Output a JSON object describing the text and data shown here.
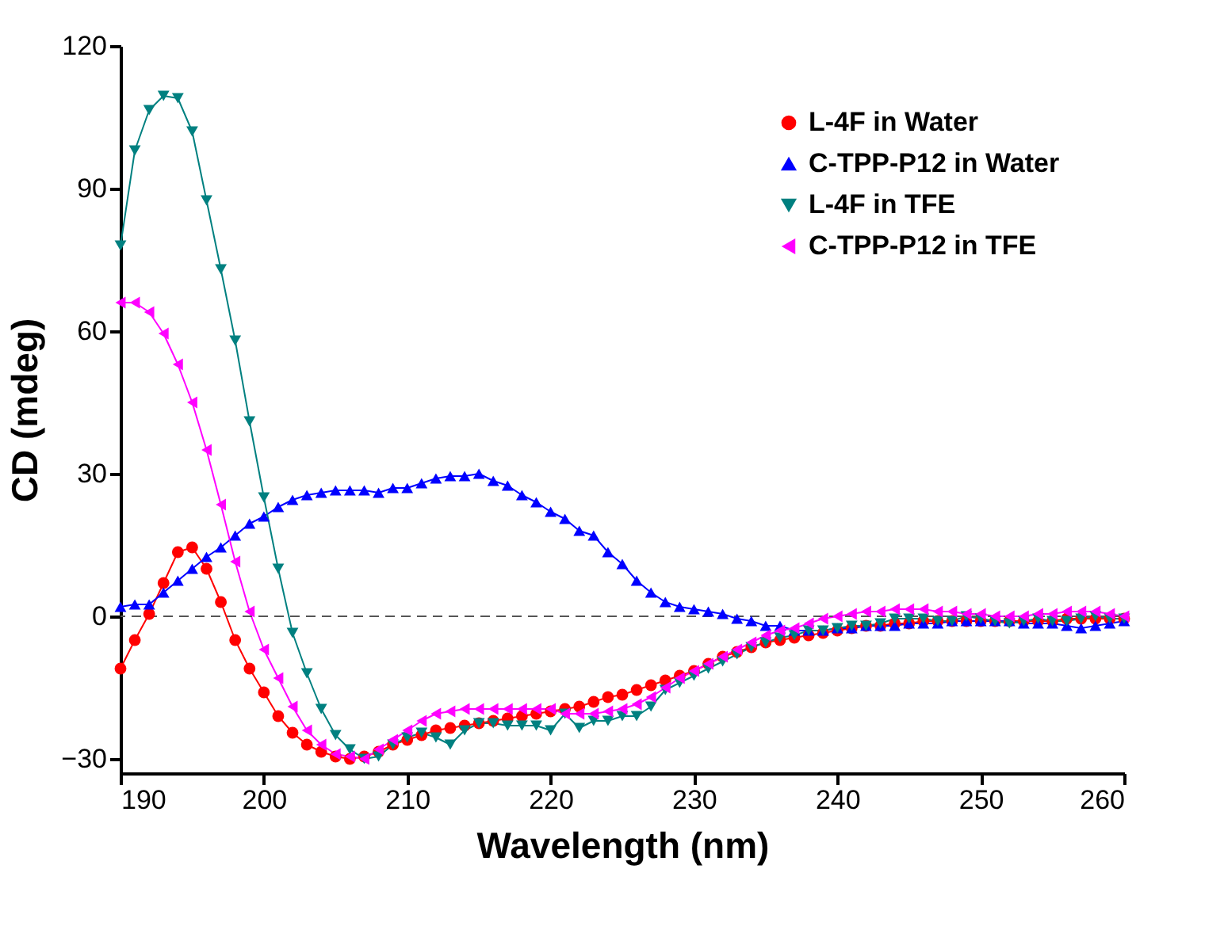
{
  "chart_data": {
    "type": "line",
    "xlabel": "Wavelength (nm)",
    "ylabel": "CD (mdeg)",
    "x": [
      190,
      191,
      192,
      193,
      194,
      195,
      196,
      197,
      198,
      199,
      200,
      201,
      202,
      203,
      204,
      205,
      206,
      207,
      208,
      209,
      210,
      211,
      212,
      213,
      214,
      215,
      216,
      217,
      218,
      219,
      220,
      221,
      222,
      223,
      224,
      225,
      226,
      227,
      228,
      229,
      230,
      231,
      232,
      233,
      234,
      235,
      236,
      237,
      238,
      239,
      240,
      241,
      242,
      243,
      244,
      245,
      246,
      247,
      248,
      249,
      250,
      251,
      252,
      253,
      254,
      255,
      256,
      257,
      258,
      259,
      260
    ],
    "xlim": [
      190,
      260
    ],
    "xticks": [
      190,
      200,
      210,
      220,
      230,
      240,
      250,
      260
    ],
    "ylim": [
      -33,
      120
    ],
    "yticks": [
      -30,
      0,
      30,
      60,
      90,
      120
    ],
    "grid": false,
    "legend": "top right",
    "line_style": "solid",
    "ref_lines": [
      {
        "axis": "y",
        "value": 0,
        "line_style": "dashed",
        "color": "#555555"
      }
    ],
    "series": [
      {
        "name": "L-4F in Water",
        "color": "#ff0000",
        "marker": "circle",
        "values": [
          -11,
          -5,
          0.5,
          7,
          13.5,
          14.5,
          10,
          3,
          -5,
          -11,
          -16,
          -21,
          -24.5,
          -27,
          -28.5,
          -29.5,
          -30,
          -29.5,
          -28.5,
          -27,
          -26,
          -25,
          -24,
          -23.5,
          -23,
          -22.5,
          -22,
          -21.5,
          -21,
          -20.5,
          -20,
          -19.5,
          -19,
          -18,
          -17,
          -16.5,
          -15.5,
          -14.5,
          -13.5,
          -12.5,
          -11.5,
          -10,
          -8.5,
          -7.5,
          -6.5,
          -5.5,
          -5,
          -4.5,
          -4,
          -3.5,
          -3,
          -2.5,
          -2,
          -2,
          -1.5,
          -1.5,
          -1,
          -1,
          -1,
          -1,
          -1,
          -1,
          -1,
          -1,
          -1,
          -1,
          -0.5,
          -0.5,
          -0.5,
          -0.5,
          -0.5
        ]
      },
      {
        "name": "C-TPP-P12 in Water",
        "color": "#0000ff",
        "marker": "triangle-up",
        "values": [
          2,
          2.5,
          2.5,
          5,
          7.5,
          10,
          12.5,
          14.5,
          17,
          19.5,
          21,
          23,
          24.5,
          25.5,
          26,
          26.5,
          26.5,
          26.5,
          26,
          27,
          27,
          28,
          29,
          29.5,
          29.5,
          30,
          28.5,
          27.5,
          25.5,
          24,
          22,
          20.5,
          18,
          17,
          13.5,
          11,
          7.5,
          5,
          3,
          2,
          1.5,
          1,
          0.5,
          -0.5,
          -1,
          -2,
          -2,
          -3,
          -3,
          -3,
          -2.5,
          -2.5,
          -2,
          -2,
          -2,
          -1.5,
          -1.5,
          -1.5,
          -1,
          -1,
          -1,
          -1,
          -1,
          -1.5,
          -1.5,
          -1.5,
          -2,
          -2.5,
          -2,
          -1.5,
          -1
        ]
      },
      {
        "name": "L-4F in TFE",
        "color": "#008080",
        "marker": "triangle-down",
        "values": [
          78,
          98,
          106.5,
          109.5,
          109,
          102,
          87.5,
          73,
          58,
          41,
          25,
          10,
          -3.5,
          -12,
          -19.5,
          -25,
          -28,
          -30,
          -29.5,
          -27,
          -25.5,
          -24.5,
          -25.5,
          -27,
          -24,
          -22.5,
          -22.5,
          -23,
          -23,
          -23,
          -24,
          -20.5,
          -23.5,
          -22,
          -22,
          -21,
          -21,
          -19,
          -15.5,
          -14,
          -12.5,
          -11,
          -9.5,
          -8,
          -6.5,
          -5.5,
          -4.5,
          -4,
          -3,
          -3,
          -2.5,
          -2,
          -2,
          -1.5,
          -0.5,
          -0.5,
          -0.5,
          -1,
          -1,
          0,
          -0.5,
          -1,
          -1.5,
          -1,
          -0.5,
          -1,
          -1,
          -0.5,
          0,
          -0.5,
          -0.5
        ]
      },
      {
        "name": "C-TPP-P12 in TFE",
        "color": "#ff00ff",
        "marker": "triangle-left",
        "values": [
          66,
          66,
          64,
          59.5,
          53,
          45,
          35,
          23.5,
          11.5,
          1,
          -7,
          -13,
          -19,
          -24,
          -27,
          -29,
          -29.5,
          -30,
          -28,
          -26,
          -24,
          -22,
          -20.5,
          -20,
          -19.5,
          -19.5,
          -19.5,
          -19.5,
          -19.5,
          -19.5,
          -19.5,
          -20.5,
          -20.5,
          -20.5,
          -20,
          -19.5,
          -18.5,
          -17,
          -15,
          -13,
          -11.5,
          -10,
          -8.5,
          -7,
          -5.5,
          -4,
          -3,
          -2.5,
          -1.5,
          -0.5,
          0,
          0.5,
          1,
          1,
          1.5,
          1.5,
          1.5,
          1,
          1,
          0.5,
          0.5,
          0,
          0,
          0,
          0.5,
          0.5,
          1,
          1,
          1,
          0.5,
          0
        ]
      }
    ]
  }
}
